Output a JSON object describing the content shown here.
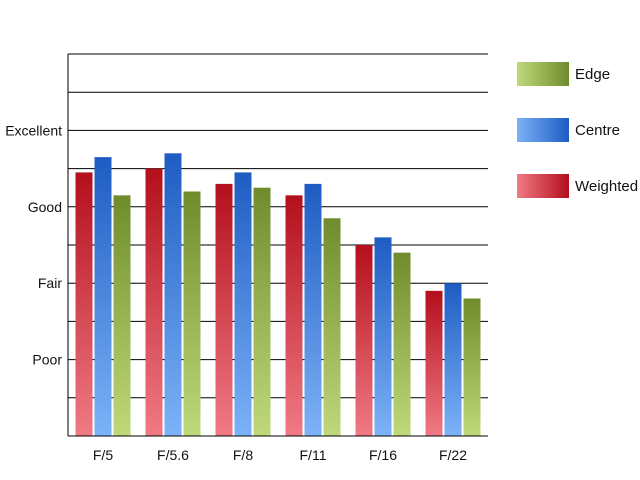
{
  "chart_data": {
    "type": "bar",
    "categories": [
      "F/5",
      "F/5.6",
      "F/8",
      "F/11",
      "F/16",
      "F/22"
    ],
    "y_tick_labels": [
      {
        "label": "Poor",
        "value": 2
      },
      {
        "label": "Fair",
        "value": 4
      },
      {
        "label": "Good",
        "value": 6
      },
      {
        "label": "Excellent",
        "value": 8
      }
    ],
    "ylim": [
      0,
      10
    ],
    "grid": true,
    "legend_position": "right",
    "series": [
      {
        "name": "Weighted",
        "values": [
          6.9,
          7.0,
          6.6,
          6.3,
          5.0,
          3.8
        ],
        "color_light": "#f07a84",
        "color_dark": "#b30f1c"
      },
      {
        "name": "Centre",
        "values": [
          7.3,
          7.4,
          6.9,
          6.6,
          5.2,
          4.0
        ],
        "color_light": "#7cb2f7",
        "color_dark": "#1e5cc2"
      },
      {
        "name": "Edge",
        "values": [
          6.3,
          6.4,
          6.5,
          5.7,
          4.8,
          3.6
        ],
        "color_light": "#bfd97a",
        "color_dark": "#6f8c2c"
      }
    ],
    "legend_order": [
      "Edge",
      "Centre",
      "Weighted"
    ]
  }
}
